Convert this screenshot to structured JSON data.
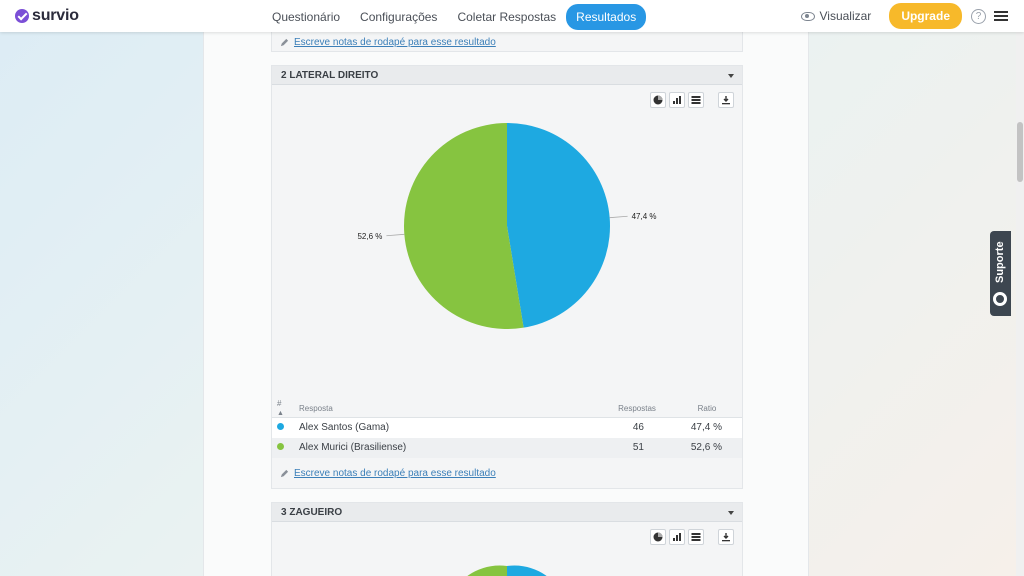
{
  "header": {
    "logo_text": "survio",
    "nav": [
      "Questionário",
      "Configurações",
      "Coletar Respostas",
      "Resultados"
    ],
    "active_nav": "Resultados",
    "visualizar": "Visualizar",
    "upgrade": "Upgrade",
    "help": "?"
  },
  "colors": {
    "blue": "#1ea9e1",
    "green": "#86c440",
    "active_tab": "#2897e4",
    "upgrade": "#f7b92a"
  },
  "footnote_text": "Escreve notas de rodapé para esse resultado",
  "questions": [
    {
      "title": "2 LATERAL DIREITO",
      "icons": [
        "pie-chart-icon",
        "bar-chart-icon",
        "table-icon",
        "download-icon"
      ],
      "table": {
        "headers": [
          "#",
          "Resposta",
          "Respostas",
          "Ratio"
        ],
        "rows": [
          {
            "answer": "Alex Santos (Gama)",
            "count": "46",
            "ratio": "47,4 %",
            "color": "#1ea9e1"
          },
          {
            "answer": "Alex Murici (Brasiliense)",
            "count": "51",
            "ratio": "52,6 %",
            "color": "#86c440"
          }
        ]
      }
    },
    {
      "title": "3 ZAGUEIRO",
      "icons": [
        "pie-chart-icon",
        "bar-chart-icon",
        "table-icon",
        "download-icon"
      ]
    }
  ],
  "chart_data": {
    "type": "pie",
    "categories": [
      "Alex Santos (Gama)",
      "Alex Murici (Brasiliense)"
    ],
    "values": [
      46,
      51
    ],
    "labels": [
      "47,4 %",
      "52,6 %"
    ],
    "colors": [
      "#1ea9e1",
      "#86c440"
    ]
  },
  "support": "Suporte"
}
